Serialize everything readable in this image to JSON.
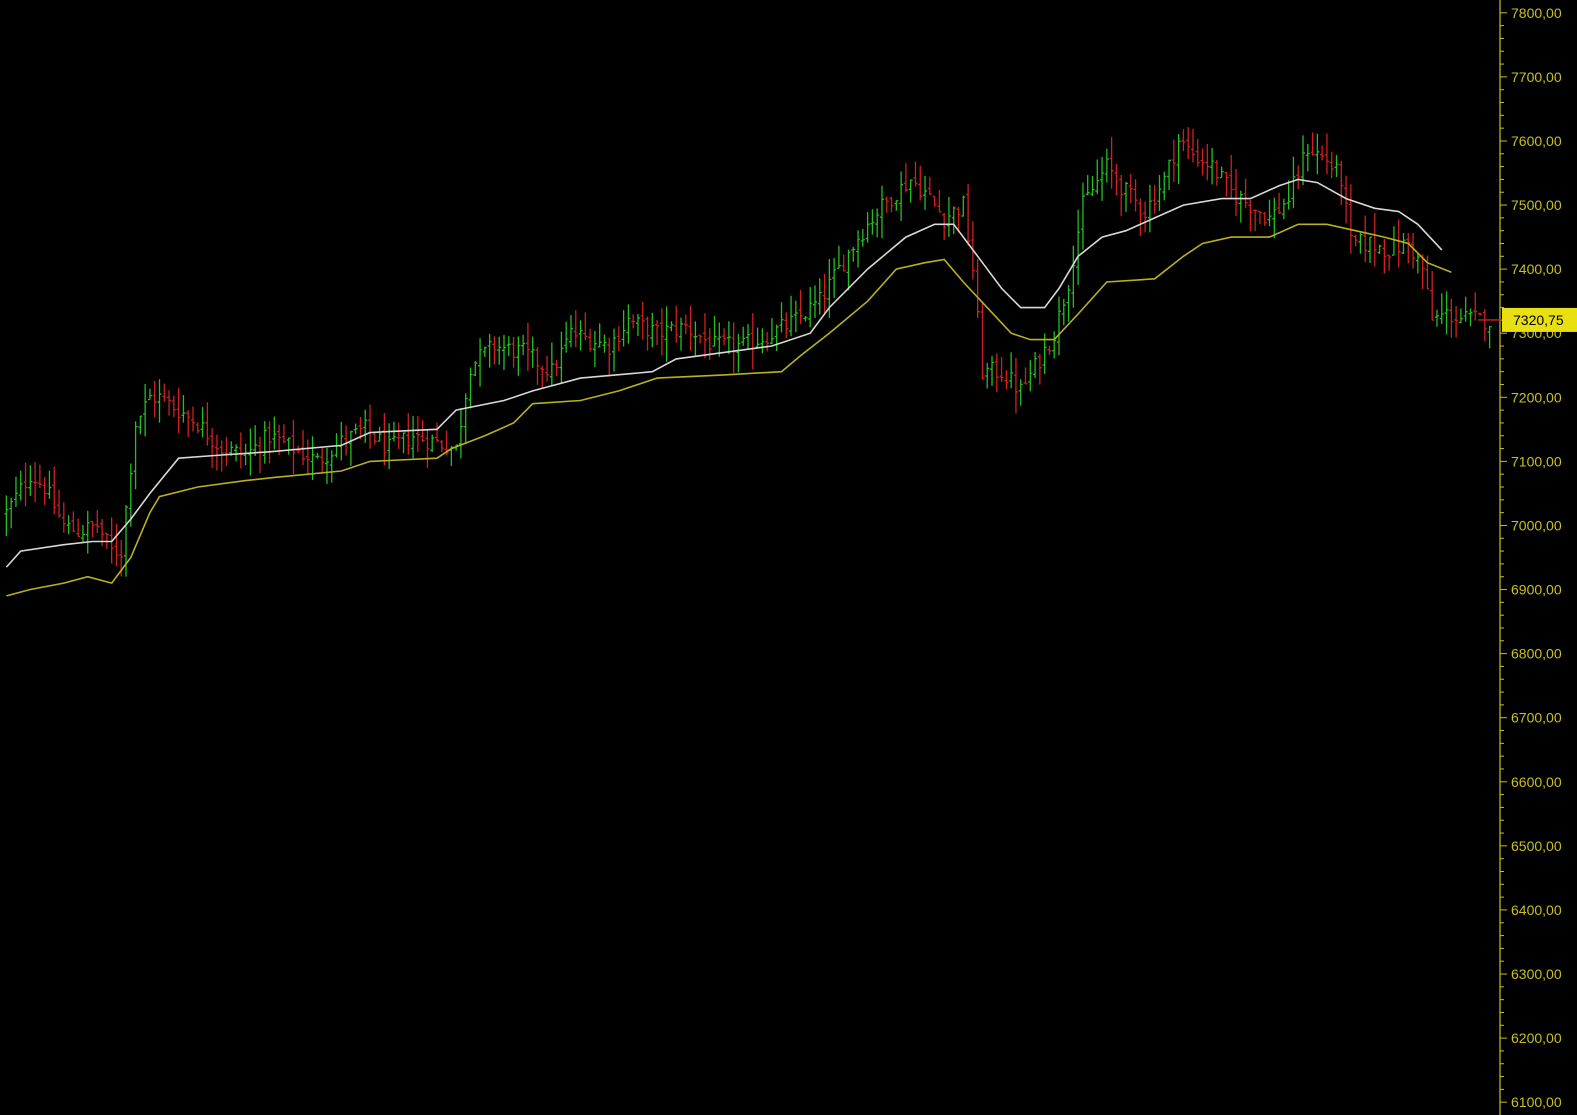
{
  "colors": {
    "background": "#000000",
    "axis": "#c8c020",
    "up_bar": "#22c022",
    "down_bar": "#d02020",
    "upper_line": "#d8d8d8",
    "lower_line": "#b8b020",
    "last_price_bg": "#e8e010",
    "last_price_text": "#000000"
  },
  "chart_data": {
    "type": "ohlc",
    "y_axis": {
      "position": "right",
      "ylim": [
        6080,
        7820
      ],
      "ticks": [
        7800,
        7700,
        7600,
        7500,
        7400,
        7300,
        7200,
        7100,
        7000,
        6900,
        6800,
        6700,
        6600,
        6500,
        6400,
        6300,
        6200,
        6100
      ],
      "tick_labels": [
        "7800,00",
        "7700,00",
        "7600,00",
        "7500,00",
        "7400,00",
        "7300,00",
        "7200,00",
        "7100,00",
        "7000,00",
        "6900,00",
        "6800,00",
        "6700,00",
        "6600,00",
        "6500,00",
        "6400,00",
        "6300,00",
        "6200,00",
        "6100,00"
      ]
    },
    "grid": false,
    "last_price": {
      "value": 7320.75,
      "label": "7320,75"
    },
    "control_points": [
      [
        0,
        7020
      ],
      [
        5,
        7080
      ],
      [
        8,
        7060
      ],
      [
        12,
        7000
      ],
      [
        15,
        6990
      ],
      [
        19,
        7000
      ],
      [
        22,
        6960
      ],
      [
        24,
        6960
      ],
      [
        27,
        7160
      ],
      [
        30,
        7200
      ],
      [
        32,
        7200
      ],
      [
        36,
        7180
      ],
      [
        40,
        7160
      ],
      [
        45,
        7120
      ],
      [
        50,
        7110
      ],
      [
        55,
        7140
      ],
      [
        60,
        7120
      ],
      [
        65,
        7100
      ],
      [
        70,
        7130
      ],
      [
        75,
        7150
      ],
      [
        80,
        7120
      ],
      [
        85,
        7140
      ],
      [
        90,
        7130
      ],
      [
        94,
        7120
      ],
      [
        97,
        7250
      ],
      [
        102,
        7280
      ],
      [
        108,
        7270
      ],
      [
        114,
        7240
      ],
      [
        118,
        7300
      ],
      [
        122,
        7290
      ],
      [
        126,
        7280
      ],
      [
        130,
        7320
      ],
      [
        136,
        7300
      ],
      [
        142,
        7310
      ],
      [
        148,
        7280
      ],
      [
        154,
        7280
      ],
      [
        160,
        7300
      ],
      [
        165,
        7320
      ],
      [
        170,
        7350
      ],
      [
        174,
        7400
      ],
      [
        178,
        7450
      ],
      [
        182,
        7490
      ],
      [
        186,
        7520
      ],
      [
        189,
        7540
      ],
      [
        192,
        7520
      ],
      [
        196,
        7480
      ],
      [
        200,
        7500
      ],
      [
        202,
        7400
      ],
      [
        204,
        7240
      ],
      [
        208,
        7240
      ],
      [
        212,
        7210
      ],
      [
        216,
        7260
      ],
      [
        219,
        7300
      ],
      [
        222,
        7380
      ],
      [
        225,
        7500
      ],
      [
        230,
        7560
      ],
      [
        234,
        7520
      ],
      [
        238,
        7490
      ],
      [
        242,
        7540
      ],
      [
        245,
        7600
      ],
      [
        248,
        7580
      ],
      [
        252,
        7560
      ],
      [
        256,
        7520
      ],
      [
        260,
        7500
      ],
      [
        264,
        7480
      ],
      [
        268,
        7510
      ],
      [
        272,
        7590
      ],
      [
        276,
        7570
      ],
      [
        279,
        7540
      ],
      [
        281,
        7440
      ],
      [
        285,
        7440
      ],
      [
        289,
        7430
      ],
      [
        293,
        7440
      ],
      [
        296,
        7400
      ],
      [
        298,
        7320
      ],
      [
        301,
        7330
      ],
      [
        304,
        7323
      ],
      [
        310,
        7320
      ]
    ],
    "n_bars": 311,
    "upper_line": [
      [
        0,
        6935
      ],
      [
        3,
        6960
      ],
      [
        12,
        6970
      ],
      [
        18,
        6975
      ],
      [
        22,
        6975
      ],
      [
        26,
        7010
      ],
      [
        30,
        7050
      ],
      [
        36,
        7105
      ],
      [
        45,
        7110
      ],
      [
        55,
        7115
      ],
      [
        70,
        7125
      ],
      [
        76,
        7145
      ],
      [
        90,
        7150
      ],
      [
        94,
        7180
      ],
      [
        104,
        7195
      ],
      [
        110,
        7210
      ],
      [
        120,
        7230
      ],
      [
        135,
        7240
      ],
      [
        140,
        7260
      ],
      [
        150,
        7270
      ],
      [
        160,
        7280
      ],
      [
        168,
        7300
      ],
      [
        172,
        7340
      ],
      [
        180,
        7400
      ],
      [
        188,
        7450
      ],
      [
        194,
        7470
      ],
      [
        198,
        7470
      ],
      [
        203,
        7420
      ],
      [
        208,
        7370
      ],
      [
        212,
        7340
      ],
      [
        217,
        7340
      ],
      [
        220,
        7370
      ],
      [
        224,
        7420
      ],
      [
        229,
        7450
      ],
      [
        234,
        7460
      ],
      [
        240,
        7480
      ],
      [
        246,
        7500
      ],
      [
        254,
        7510
      ],
      [
        260,
        7510
      ],
      [
        266,
        7530
      ],
      [
        270,
        7540
      ],
      [
        274,
        7535
      ],
      [
        280,
        7510
      ],
      [
        286,
        7495
      ],
      [
        291,
        7490
      ],
      [
        295,
        7470
      ],
      [
        300,
        7430
      ]
    ],
    "lower_line": [
      [
        0,
        6890
      ],
      [
        5,
        6900
      ],
      [
        12,
        6910
      ],
      [
        17,
        6920
      ],
      [
        22,
        6910
      ],
      [
        26,
        6950
      ],
      [
        30,
        7020
      ],
      [
        32,
        7045
      ],
      [
        40,
        7060
      ],
      [
        50,
        7070
      ],
      [
        56,
        7075
      ],
      [
        70,
        7085
      ],
      [
        76,
        7100
      ],
      [
        90,
        7105
      ],
      [
        93,
        7120
      ],
      [
        100,
        7140
      ],
      [
        106,
        7160
      ],
      [
        110,
        7190
      ],
      [
        120,
        7195
      ],
      [
        128,
        7210
      ],
      [
        136,
        7230
      ],
      [
        150,
        7235
      ],
      [
        162,
        7240
      ],
      [
        166,
        7265
      ],
      [
        172,
        7300
      ],
      [
        180,
        7350
      ],
      [
        186,
        7400
      ],
      [
        192,
        7410
      ],
      [
        196,
        7415
      ],
      [
        200,
        7380
      ],
      [
        205,
        7340
      ],
      [
        210,
        7300
      ],
      [
        214,
        7290
      ],
      [
        219,
        7290
      ],
      [
        224,
        7330
      ],
      [
        230,
        7380
      ],
      [
        240,
        7385
      ],
      [
        246,
        7420
      ],
      [
        250,
        7440
      ],
      [
        256,
        7450
      ],
      [
        264,
        7450
      ],
      [
        270,
        7470
      ],
      [
        276,
        7470
      ],
      [
        282,
        7460
      ],
      [
        288,
        7450
      ],
      [
        293,
        7440
      ],
      [
        297,
        7410
      ],
      [
        302,
        7395
      ]
    ]
  }
}
